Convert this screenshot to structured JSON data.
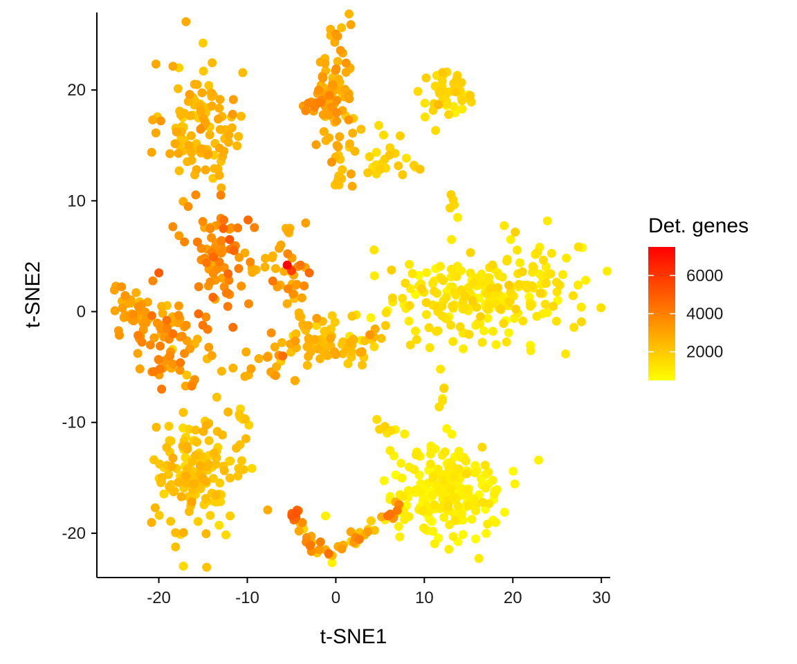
{
  "chart_data": {
    "type": "scatter",
    "title": "",
    "xlabel": "t-SNE1",
    "ylabel": "t-SNE2",
    "xlim": [
      -27,
      31
    ],
    "ylim": [
      -24,
      27
    ],
    "xticks": [
      -20,
      -10,
      0,
      10,
      20,
      30
    ],
    "yticks": [
      -20,
      -10,
      0,
      10,
      20
    ],
    "xtick_labels": [
      "-20",
      "-10",
      "0",
      "10",
      "20",
      "30"
    ],
    "ytick_labels": [
      "-20",
      "-10",
      "0",
      "10",
      "20"
    ],
    "grid": false,
    "color_variable": "Det. genes",
    "color_scale": {
      "low": "#ffff00",
      "high": "#ff0000",
      "min": 500,
      "max": 7500,
      "breaks": [
        2000,
        4000,
        6000
      ],
      "break_labels": [
        "2000",
        "4000",
        "6000"
      ]
    },
    "legend": {
      "position": "right",
      "title": "Det. genes"
    },
    "clusters": [
      {
        "cx": -15,
        "cy": 16.5,
        "sx": 2.2,
        "sy": 3.0,
        "n": 110,
        "mean": 2500,
        "sd": 400
      },
      {
        "cx": 0,
        "cy": 20,
        "sx": 1.3,
        "sy": 3.5,
        "n": 90,
        "mean": 2800,
        "sd": 400
      },
      {
        "cx": 12.5,
        "cy": 19.5,
        "sx": 1.5,
        "sy": 1.7,
        "n": 45,
        "mean": 1600,
        "sd": 300
      },
      {
        "cx": 7,
        "cy": 14,
        "sx": 2.0,
        "sy": 1.0,
        "n": 22,
        "mean": 1700,
        "sd": 300
      },
      {
        "cx": -13,
        "cy": 5,
        "sx": 2.0,
        "sy": 2.5,
        "n": 70,
        "mean": 3700,
        "sd": 500
      },
      {
        "cx": -23,
        "cy": 0,
        "sx": 1.3,
        "sy": 1.3,
        "n": 40,
        "mean": 3000,
        "sd": 400
      },
      {
        "cx": -18,
        "cy": -3,
        "sx": 2.2,
        "sy": 2.0,
        "n": 70,
        "mean": 3300,
        "sd": 500
      },
      {
        "cx": -5,
        "cy": 3,
        "sx": 1.0,
        "sy": 1.4,
        "n": 20,
        "mean": 3200,
        "sd": 500
      },
      {
        "cx": 0,
        "cy": -2.5,
        "sx": 2.5,
        "sy": 1.2,
        "n": 60,
        "mean": 2300,
        "sd": 400
      },
      {
        "cx": -7,
        "cy": -4.5,
        "sx": 2.0,
        "sy": 1.0,
        "n": 20,
        "mean": 2800,
        "sd": 400
      },
      {
        "cx": 16.5,
        "cy": 1.5,
        "sx": 5.5,
        "sy": 2.4,
        "n": 230,
        "mean": 1200,
        "sd": 250
      },
      {
        "cx": -16,
        "cy": -14.5,
        "sx": 2.5,
        "sy": 2.8,
        "n": 150,
        "mean": 2100,
        "sd": 350
      },
      {
        "cx": 12.5,
        "cy": -16.5,
        "sx": 3.3,
        "sy": 2.2,
        "n": 210,
        "mean": 900,
        "sd": 200
      },
      {
        "cx": 12,
        "cy": -7.5,
        "sx": 0.3,
        "sy": 0.9,
        "n": 6,
        "mean": 1200,
        "sd": 200
      }
    ],
    "paths": [
      {
        "points": [
          [
            -4.5,
            -18
          ],
          [
            -3.5,
            -20.5
          ],
          [
            -1,
            -21.7
          ],
          [
            2,
            -21
          ],
          [
            5,
            -19
          ],
          [
            8,
            -17
          ]
        ],
        "n": 45,
        "jitter": 0.4,
        "mean": 1800,
        "sd": 500,
        "start_mean": 4200
      },
      {
        "points": [
          [
            -4.5,
            -17.8
          ],
          [
            -4.8,
            -18.8
          ]
        ],
        "n": 8,
        "jitter": 0.3,
        "mean": 4500,
        "sd": 400,
        "start_mean": 4500
      },
      {
        "points": [
          [
            0.5,
            14
          ],
          [
            0.7,
            12
          ],
          [
            0.6,
            11
          ]
        ],
        "n": 10,
        "jitter": 0.3,
        "mean": 2200,
        "sd": 300,
        "start_mean": 2200
      },
      {
        "points": [
          [
            -1.5,
            19
          ],
          [
            -3,
            18
          ]
        ],
        "n": 6,
        "jitter": 0.3,
        "mean": 3800,
        "sd": 300,
        "start_mean": 3800
      },
      {
        "points": [
          [
            -10,
            3
          ],
          [
            -7,
            5
          ],
          [
            -5,
            7.5
          ],
          [
            -3.5,
            8.2
          ]
        ],
        "n": 14,
        "jitter": 0.3,
        "mean": 2800,
        "sd": 400,
        "start_mean": 2800
      },
      {
        "points": [
          [
            -5,
            2
          ],
          [
            -4,
            -1
          ],
          [
            -2,
            -3
          ]
        ],
        "n": 14,
        "jitter": 0.3,
        "mean": 2400,
        "sd": 400,
        "start_mean": 2400
      },
      {
        "points": [
          [
            -10.5,
            -10
          ],
          [
            -11,
            -8.5
          ]
        ],
        "n": 8,
        "jitter": 0.3,
        "mean": 2000,
        "sd": 300,
        "start_mean": 2000
      },
      {
        "points": [
          [
            13,
            10.5
          ],
          [
            13.3,
            9.5
          ]
        ],
        "n": 4,
        "jitter": 0.2,
        "mean": 1600,
        "sd": 200,
        "start_mean": 1600
      },
      {
        "points": [
          [
            4.5,
            -10
          ],
          [
            6.5,
            -11
          ]
        ],
        "n": 5,
        "jitter": 0.3,
        "mean": 1600,
        "sd": 300,
        "start_mean": 1600
      }
    ],
    "highlights": [
      {
        "x": -5.5,
        "y": 4.2,
        "value": 7400
      },
      {
        "x": -5.0,
        "y": 3.7,
        "value": 5800
      },
      {
        "x": -4.5,
        "y": -18.2,
        "value": 5200
      },
      {
        "x": -3.0,
        "y": 3.5,
        "value": 4600
      },
      {
        "x": -4.0,
        "y": 4.2,
        "value": 4300
      },
      {
        "x": -6.0,
        "y": -4.0,
        "value": 4500
      },
      {
        "x": -20.0,
        "y": 3.5,
        "value": 5000
      },
      {
        "x": -12.0,
        "y": 6.5,
        "value": 5200
      },
      {
        "x": -12.7,
        "y": 7.5,
        "value": 4800
      },
      {
        "x": -11.5,
        "y": 5.5,
        "value": 4700
      }
    ]
  }
}
